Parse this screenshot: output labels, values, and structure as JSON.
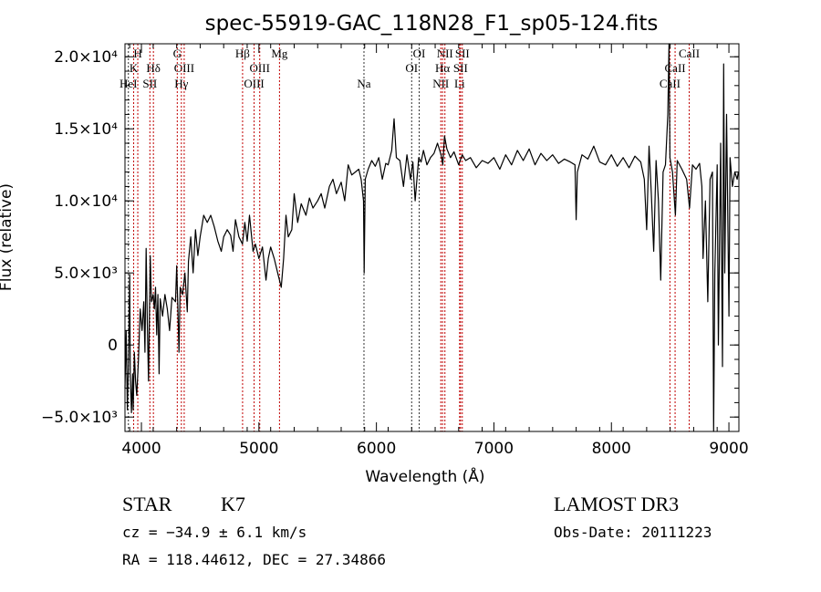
{
  "chart_data": {
    "type": "line",
    "title": "spec-55919-GAC_118N28_F1_sp05-124.fits",
    "xlabel": "Wavelength (Å)",
    "ylabel": "Flux (relative)",
    "xlim": [
      3860,
      9085
    ],
    "ylim": [
      -6000,
      20900
    ],
    "x_ticks": [
      4000,
      5000,
      6000,
      7000,
      8000,
      9000
    ],
    "x_tick_labels": [
      "4000",
      "5000",
      "6000",
      "7000",
      "8000",
      "9000"
    ],
    "y_ticks": [
      -5000,
      0,
      5000,
      10000,
      15000,
      20000
    ],
    "y_tick_labels": [
      "−5.0×10³",
      "0",
      "5.0×10³",
      "1.0×10⁴",
      "1.5×10⁴",
      "2.0×10⁴"
    ],
    "line_color": "#000000",
    "marker_colors": {
      "red": "#c00000",
      "black": "#333333"
    },
    "lines": [
      {
        "label": "H",
        "wavelength": 3969,
        "row": 0,
        "color": "red"
      },
      {
        "label": "K",
        "wavelength": 3934,
        "row": 1,
        "color": "red"
      },
      {
        "label": "HeI",
        "wavelength": 3889,
        "row": 2,
        "color": "black"
      },
      {
        "label": "Hδ",
        "wavelength": 4102,
        "row": 1,
        "color": "red"
      },
      {
        "label": "SII",
        "wavelength": 4072,
        "row": 2,
        "color": "red"
      },
      {
        "label": "G",
        "wavelength": 4305,
        "row": 0,
        "color": "red"
      },
      {
        "label": "OIII",
        "wavelength": 4364,
        "row": 1,
        "color": "red"
      },
      {
        "label": "Hγ",
        "wavelength": 4340,
        "row": 2,
        "color": "red"
      },
      {
        "label": "Hβ",
        "wavelength": 4861,
        "row": 0,
        "color": "red"
      },
      {
        "label": "OIII",
        "wavelength": 5007,
        "row": 1,
        "color": "red"
      },
      {
        "label": "OIII",
        "wavelength": 4959,
        "row": 2,
        "color": "red"
      },
      {
        "label": "Mg",
        "wavelength": 5175,
        "row": 0,
        "color": "red"
      },
      {
        "label": "Na",
        "wavelength": 5894,
        "row": 2,
        "color": "black"
      },
      {
        "label": "OI",
        "wavelength": 6364,
        "row": 0,
        "color": "black"
      },
      {
        "label": "OI",
        "wavelength": 6300,
        "row": 1,
        "color": "black"
      },
      {
        "label": "NII",
        "wavelength": 6583,
        "row": 0,
        "color": "red"
      },
      {
        "label": "Hα",
        "wavelength": 6563,
        "row": 1,
        "color": "red"
      },
      {
        "label": "NII",
        "wavelength": 6548,
        "row": 2,
        "color": "red"
      },
      {
        "label": "SII",
        "wavelength": 6731,
        "row": 0,
        "color": "red"
      },
      {
        "label": "SII",
        "wavelength": 6716,
        "row": 1,
        "color": "red"
      },
      {
        "label": "Li",
        "wavelength": 6708,
        "row": 2,
        "color": "red"
      },
      {
        "label": "CaII",
        "wavelength": 8662,
        "row": 0,
        "color": "red"
      },
      {
        "label": "CaII",
        "wavelength": 8542,
        "row": 1,
        "color": "red"
      },
      {
        "label": "CaII",
        "wavelength": 8498,
        "row": 2,
        "color": "red"
      }
    ],
    "series": [
      {
        "name": "flux",
        "x": [
          3860,
          3870,
          3880,
          3890,
          3900,
          3905,
          3915,
          3925,
          3930,
          3940,
          3950,
          3960,
          3975,
          3990,
          4005,
          4020,
          4030,
          4040,
          4050,
          4060,
          4075,
          4085,
          4100,
          4110,
          4120,
          4130,
          4140,
          4150,
          4160,
          4180,
          4200,
          4220,
          4240,
          4260,
          4290,
          4300,
          4310,
          4320,
          4330,
          4350,
          4370,
          4390,
          4400,
          4420,
          4440,
          4460,
          4480,
          4500,
          4530,
          4560,
          4590,
          4620,
          4650,
          4680,
          4700,
          4730,
          4760,
          4780,
          4800,
          4830,
          4860,
          4880,
          4900,
          4920,
          4950,
          4970,
          5000,
          5030,
          5060,
          5080,
          5100,
          5130,
          5160,
          5190,
          5210,
          5230,
          5250,
          5280,
          5300,
          5330,
          5360,
          5400,
          5430,
          5460,
          5500,
          5530,
          5560,
          5600,
          5630,
          5660,
          5700,
          5730,
          5760,
          5790,
          5820,
          5850,
          5870,
          5890,
          5896,
          5905,
          5930,
          5960,
          5990,
          6020,
          6050,
          6080,
          6100,
          6130,
          6150,
          6170,
          6200,
          6230,
          6260,
          6290,
          6310,
          6330,
          6360,
          6380,
          6400,
          6430,
          6460,
          6490,
          6520,
          6550,
          6565,
          6580,
          6600,
          6630,
          6660,
          6700,
          6730,
          6760,
          6800,
          6850,
          6900,
          6950,
          7000,
          7050,
          7100,
          7150,
          7200,
          7250,
          7300,
          7350,
          7400,
          7450,
          7500,
          7550,
          7600,
          7650,
          7690,
          7700,
          7710,
          7750,
          7800,
          7850,
          7900,
          7950,
          8000,
          8050,
          8100,
          8150,
          8200,
          8250,
          8280,
          8300,
          8320,
          8340,
          8360,
          8380,
          8400,
          8420,
          8440,
          8460,
          8480,
          8490,
          8498,
          8520,
          8545,
          8560,
          8600,
          8640,
          8665,
          8690,
          8720,
          8750,
          8770,
          8780,
          8800,
          8820,
          8840,
          8860,
          8870,
          8880,
          8900,
          8910,
          8930,
          8945,
          8955,
          8965,
          8980,
          9000,
          9010,
          9030,
          9050,
          9070,
          9080
        ],
        "y": [
          -3000,
          1000,
          -4500,
          -1000,
          4900,
          -2000,
          -4700,
          -2000,
          -4500,
          -500,
          -2500,
          -3500,
          -1000,
          2500,
          1000,
          3000,
          -500,
          6700,
          1500,
          -2500,
          6200,
          3000,
          3500,
          2500,
          4000,
          700,
          3500,
          -2000,
          3200,
          2000,
          3500,
          2500,
          1000,
          3300,
          3000,
          5500,
          2500,
          -500,
          4000,
          3500,
          5000,
          2300,
          5800,
          7500,
          5000,
          8000,
          6200,
          7500,
          9000,
          8500,
          9000,
          8200,
          7200,
          6500,
          7500,
          8000,
          7600,
          6500,
          8700,
          7500,
          7000,
          8500,
          7200,
          9000,
          6500,
          7000,
          6000,
          6800,
          4500,
          6000,
          6800,
          6000,
          5000,
          4000,
          6000,
          9000,
          7500,
          8000,
          10500,
          8500,
          9800,
          9000,
          10200,
          9500,
          10000,
          10500,
          9500,
          11000,
          11500,
          10500,
          11300,
          10000,
          12500,
          11800,
          12000,
          12200,
          11500,
          10000,
          5000,
          11500,
          12200,
          12800,
          12400,
          13000,
          11500,
          12600,
          12500,
          13500,
          15700,
          13000,
          12800,
          11000,
          13200,
          11500,
          12700,
          10000,
          13000,
          12700,
          13500,
          12500,
          13000,
          13300,
          14000,
          13200,
          12500,
          14500,
          13600,
          13000,
          13400,
          12500,
          13200,
          12800,
          13000,
          12300,
          12800,
          12600,
          13000,
          12200,
          13200,
          12500,
          13500,
          12800,
          13600,
          12500,
          13300,
          12800,
          13200,
          12600,
          12900,
          12700,
          12500,
          8700,
          12000,
          13200,
          12900,
          13800,
          12700,
          12500,
          13200,
          12400,
          13000,
          12300,
          13100,
          12700,
          11500,
          8000,
          13800,
          10500,
          6500,
          12800,
          10000,
          4500,
          12000,
          12500,
          16000,
          20900,
          13000,
          12000,
          9000,
          12800,
          12200,
          11500,
          9500,
          12500,
          12200,
          12600,
          11000,
          6000,
          10000,
          3000,
          11500,
          12000,
          -6000,
          5000,
          12500,
          0,
          14000,
          -1500,
          19500,
          5000,
          16000,
          2000,
          13000,
          11000,
          12000,
          11500,
          12000
        ]
      }
    ]
  },
  "footer": {
    "object_class": "STAR",
    "subclass": "K7",
    "survey": "LAMOST DR3",
    "cz": "cz = −34.9 ± 6.1 km/s",
    "obs_date": "Obs-Date: 20111223",
    "coords": "RA = 118.44612, DEC =  27.34866"
  }
}
